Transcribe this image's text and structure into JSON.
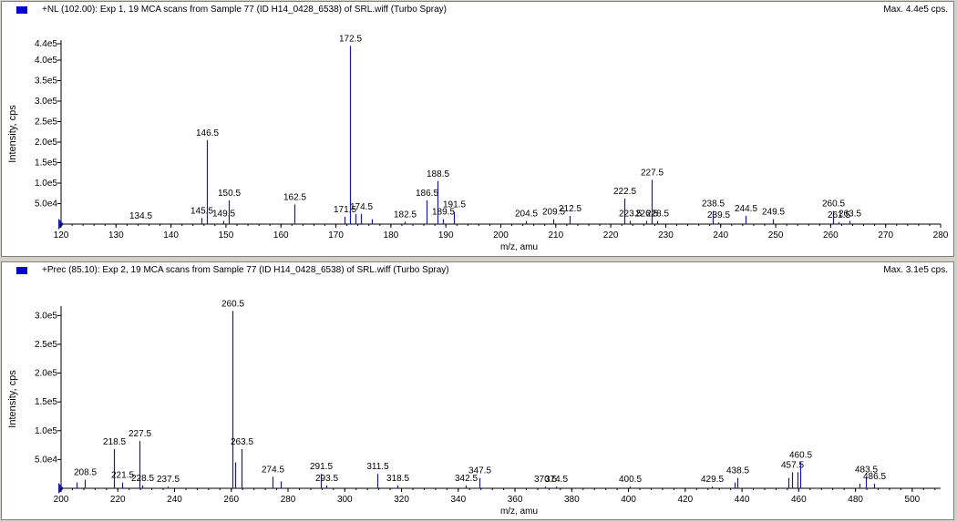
{
  "chart_data": [
    {
      "type": "bar",
      "title": "+NL (102.00): Exp 1, 19 MCA scans from Sample 77 (ID H14_0428_6538) of SRL.wiff (Turbo Spray)",
      "max_label": "Max. 4.4e5 cps.",
      "xlabel": "m/z, amu",
      "ylabel": "Intensity, cps",
      "xlim": [
        120,
        280
      ],
      "ylim": [
        0,
        440000
      ],
      "xticks": [
        120,
        130,
        140,
        150,
        160,
        170,
        180,
        190,
        200,
        210,
        220,
        230,
        240,
        250,
        260,
        270,
        280
      ],
      "yticks": [
        {
          "value": 50000,
          "label": "5.0e4"
        },
        {
          "value": 100000,
          "label": "1.0e5"
        },
        {
          "value": 150000,
          "label": "1.5e5"
        },
        {
          "value": 200000,
          "label": "2.0e5"
        },
        {
          "value": 250000,
          "label": "2.5e5"
        },
        {
          "value": 300000,
          "label": "3.0e5"
        },
        {
          "value": 350000,
          "label": "3.5e5"
        },
        {
          "value": 400000,
          "label": "4.0e5"
        },
        {
          "value": 440000,
          "label": "4.4e5"
        }
      ],
      "color": "#1a1aa0",
      "peaks": [
        {
          "mz": 134.5,
          "intensity": 2000,
          "label": "134.5"
        },
        {
          "mz": 145.5,
          "intensity": 15000,
          "label": "145.5"
        },
        {
          "mz": 146.5,
          "intensity": 205000,
          "label": "146.5"
        },
        {
          "mz": 149.5,
          "intensity": 8000,
          "label": "149.5"
        },
        {
          "mz": 150.5,
          "intensity": 58000,
          "label": "150.5"
        },
        {
          "mz": 162.5,
          "intensity": 48000,
          "label": "162.5"
        },
        {
          "mz": 171.5,
          "intensity": 18000,
          "label": "171.5"
        },
        {
          "mz": 172.5,
          "intensity": 435000,
          "label": "172.5"
        },
        {
          "mz": 173.5,
          "intensity": 25000,
          "label": ""
        },
        {
          "mz": 174.5,
          "intensity": 25000,
          "label": "174.5"
        },
        {
          "mz": 176.5,
          "intensity": 12000,
          "label": ""
        },
        {
          "mz": 182.5,
          "intensity": 6000,
          "label": "182.5"
        },
        {
          "mz": 186.5,
          "intensity": 58000,
          "label": "186.5"
        },
        {
          "mz": 188.5,
          "intensity": 105000,
          "label": "188.5"
        },
        {
          "mz": 189.5,
          "intensity": 12000,
          "label": "189.5"
        },
        {
          "mz": 191.5,
          "intensity": 30000,
          "label": "191.5"
        },
        {
          "mz": 204.5,
          "intensity": 8000,
          "label": "204.5"
        },
        {
          "mz": 209.5,
          "intensity": 12000,
          "label": "209.5"
        },
        {
          "mz": 212.5,
          "intensity": 20000,
          "label": "212.5"
        },
        {
          "mz": 222.5,
          "intensity": 62000,
          "label": "222.5"
        },
        {
          "mz": 223.5,
          "intensity": 8000,
          "label": "223.5"
        },
        {
          "mz": 226.5,
          "intensity": 8000,
          "label": "226.5"
        },
        {
          "mz": 227.5,
          "intensity": 108000,
          "label": "227.5"
        },
        {
          "mz": 228.5,
          "intensity": 8000,
          "label": "228.5"
        },
        {
          "mz": 238.5,
          "intensity": 32000,
          "label": "238.5"
        },
        {
          "mz": 239.5,
          "intensity": 4000,
          "label": "239.5"
        },
        {
          "mz": 244.5,
          "intensity": 20000,
          "label": "244.5"
        },
        {
          "mz": 249.5,
          "intensity": 12000,
          "label": "249.5"
        },
        {
          "mz": 260.5,
          "intensity": 32000,
          "label": "260.5"
        },
        {
          "mz": 261.5,
          "intensity": 5000,
          "label": "261.5"
        },
        {
          "mz": 263.5,
          "intensity": 8000,
          "label": "263.5"
        }
      ]
    },
    {
      "type": "bar",
      "title": "+Prec (85.10): Exp 2, 19 MCA scans from Sample 77 (ID H14_0428_6538) of SRL.wiff (Turbo Spray)",
      "max_label": "Max. 3.1e5 cps.",
      "xlabel": "m/z, amu",
      "ylabel": "Intensity, cps",
      "xlim": [
        200,
        510
      ],
      "ylim": [
        0,
        310000
      ],
      "xticks": [
        200,
        220,
        240,
        260,
        280,
        300,
        320,
        340,
        360,
        380,
        400,
        420,
        440,
        460,
        480,
        500
      ],
      "yticks": [
        {
          "value": 50000,
          "label": "5.0e4"
        },
        {
          "value": 100000,
          "label": "1.0e5"
        },
        {
          "value": 150000,
          "label": "1.5e5"
        },
        {
          "value": 200000,
          "label": "2.0e5"
        },
        {
          "value": 250000,
          "label": "2.5e5"
        },
        {
          "value": 300000,
          "label": "3.0e5"
        }
      ],
      "color": "#1a1aa0",
      "peaks": [
        {
          "mz": 205.5,
          "intensity": 10000,
          "label": ""
        },
        {
          "mz": 208.5,
          "intensity": 15000,
          "label": "208.5"
        },
        {
          "mz": 218.5,
          "intensity": 68000,
          "label": "218.5"
        },
        {
          "mz": 221.5,
          "intensity": 10000,
          "label": "221.5"
        },
        {
          "mz": 227.5,
          "intensity": 82000,
          "label": "227.5"
        },
        {
          "mz": 228.5,
          "intensity": 5000,
          "label": "228.5"
        },
        {
          "mz": 237.5,
          "intensity": 3000,
          "label": "237.5"
        },
        {
          "mz": 260.5,
          "intensity": 308000,
          "label": "260.5"
        },
        {
          "mz": 261.5,
          "intensity": 45000,
          "label": ""
        },
        {
          "mz": 263.5,
          "intensity": 68000,
          "label": "263.5"
        },
        {
          "mz": 274.5,
          "intensity": 20000,
          "label": "274.5"
        },
        {
          "mz": 277.5,
          "intensity": 12000,
          "label": ""
        },
        {
          "mz": 291.5,
          "intensity": 25000,
          "label": "291.5"
        },
        {
          "mz": 293.5,
          "intensity": 5000,
          "label": "293.5"
        },
        {
          "mz": 311.5,
          "intensity": 25000,
          "label": "311.5"
        },
        {
          "mz": 318.5,
          "intensity": 5000,
          "label": "318.5"
        },
        {
          "mz": 342.5,
          "intensity": 5000,
          "label": "342.5"
        },
        {
          "mz": 347.5,
          "intensity": 18000,
          "label": "347.5"
        },
        {
          "mz": 370.5,
          "intensity": 3000,
          "label": "370.5"
        },
        {
          "mz": 374.5,
          "intensity": 3000,
          "label": "374.5"
        },
        {
          "mz": 400.5,
          "intensity": 3000,
          "label": "400.5"
        },
        {
          "mz": 429.5,
          "intensity": 3000,
          "label": "429.5"
        },
        {
          "mz": 437.5,
          "intensity": 10000,
          "label": ""
        },
        {
          "mz": 438.5,
          "intensity": 18000,
          "label": "438.5"
        },
        {
          "mz": 456.5,
          "intensity": 18000,
          "label": ""
        },
        {
          "mz": 457.5,
          "intensity": 28000,
          "label": "457.5"
        },
        {
          "mz": 459.5,
          "intensity": 28000,
          "label": ""
        },
        {
          "mz": 460.5,
          "intensity": 45000,
          "label": "460.5"
        },
        {
          "mz": 481.5,
          "intensity": 8000,
          "label": ""
        },
        {
          "mz": 483.5,
          "intensity": 20000,
          "label": "483.5"
        },
        {
          "mz": 486.5,
          "intensity": 8000,
          "label": "486.5"
        }
      ]
    }
  ]
}
